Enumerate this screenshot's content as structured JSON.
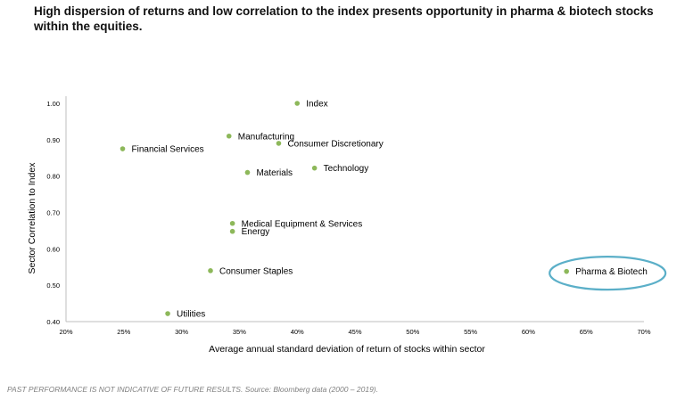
{
  "title": "High dispersion of returns and low correlation to the index presents opportunity in pharma & biotech stocks within the equities.",
  "footer": "PAST PERFORMANCE IS NOT INDICATIVE OF FUTURE RESULTS. Source: Bloomberg data (2000 – 2019).",
  "colors": {
    "point": "#8DB85A",
    "highlight_ellipse": "#5BAFC8",
    "axis": "#BFBFBF",
    "text": "#000000"
  },
  "chart_data": {
    "type": "scatter",
    "title": "High dispersion of returns and low correlation to the index presents opportunity in pharma & biotech stocks within the equities.",
    "xlabel": "Average annual standard deviation of return of stocks within sector",
    "ylabel": "Sector Correlation to Index",
    "xlim": [
      0.2,
      0.7
    ],
    "ylim": [
      0.4,
      1.0
    ],
    "xticks": [
      "20%",
      "25%",
      "30%",
      "35%",
      "40%",
      "45%",
      "50%",
      "55%",
      "60%",
      "65%",
      "70%"
    ],
    "yticks": [
      "0.40",
      "0.50",
      "0.60",
      "0.70",
      "0.80",
      "0.90",
      "1.00"
    ],
    "grid": false,
    "highlight": "Pharma & Biotech",
    "points": [
      {
        "label": "Index",
        "x": 0.4,
        "y": 1.0
      },
      {
        "label": "Manufacturing",
        "x": 0.341,
        "y": 0.91
      },
      {
        "label": "Consumer Discretionary",
        "x": 0.384,
        "y": 0.89
      },
      {
        "label": "Financial Services",
        "x": 0.249,
        "y": 0.875
      },
      {
        "label": "Technology",
        "x": 0.415,
        "y": 0.822
      },
      {
        "label": "Materials",
        "x": 0.357,
        "y": 0.81
      },
      {
        "label": "Medical Equipment & Services",
        "x": 0.344,
        "y": 0.67
      },
      {
        "label": "Energy",
        "x": 0.344,
        "y": 0.648
      },
      {
        "label": "Consumer Staples",
        "x": 0.325,
        "y": 0.54
      },
      {
        "label": "Pharma & Biotech",
        "x": 0.633,
        "y": 0.538
      },
      {
        "label": "Utilities",
        "x": 0.288,
        "y": 0.422
      }
    ]
  }
}
